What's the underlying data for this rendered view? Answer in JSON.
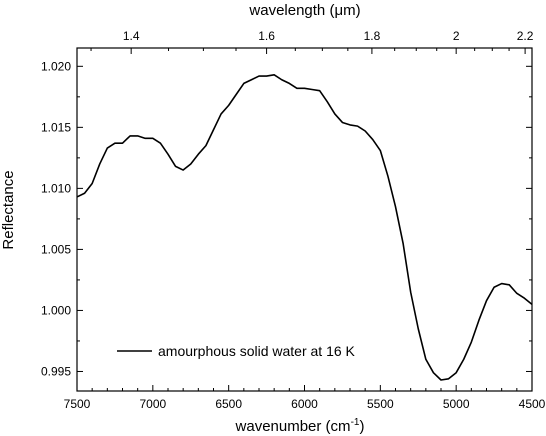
{
  "chart_data": {
    "type": "line",
    "xlabel": "wavenumber (cm",
    "xlabel_sup": "-1",
    "xlabel_close": ")",
    "x2label": "wavelength (",
    "x2label_mu": "μm",
    "x2label_close": ")",
    "ylabel": "Reflectance",
    "xlim": [
      7500,
      4500
    ],
    "ylim": [
      0.9934,
      1.0215
    ],
    "x_ticks": [
      7500,
      7000,
      6500,
      6000,
      5500,
      5000,
      4500
    ],
    "x_tick_labels": [
      "7500",
      "7000",
      "6500",
      "6000",
      "5500",
      "5000",
      "4500"
    ],
    "y_ticks": [
      0.995,
      1.0,
      1.005,
      1.01,
      1.015,
      1.02
    ],
    "y_tick_labels": [
      "0.995",
      "1.000",
      "1.005",
      "1.010",
      "1.015",
      "1.020"
    ],
    "x2_ticks_um": [
      1.4,
      1.6,
      1.8,
      2.0,
      2.2
    ],
    "x2_tick_labels": [
      "1.4",
      "1.6",
      "1.8",
      "2",
      "2.2"
    ],
    "grid": false,
    "legend_position": "bottom-left",
    "series": [
      {
        "name": "amourphous solid water at 16 K",
        "color": "#000000",
        "x": [
          7500,
          7450,
          7400,
          7350,
          7300,
          7250,
          7200,
          7150,
          7100,
          7050,
          7000,
          6950,
          6900,
          6850,
          6800,
          6750,
          6700,
          6650,
          6600,
          6550,
          6500,
          6450,
          6400,
          6350,
          6300,
          6250,
          6200,
          6150,
          6100,
          6050,
          6000,
          5950,
          5900,
          5850,
          5800,
          5750,
          5700,
          5650,
          5600,
          5550,
          5500,
          5450,
          5400,
          5350,
          5300,
          5250,
          5200,
          5150,
          5100,
          5050,
          5000,
          4950,
          4900,
          4850,
          4800,
          4750,
          4700,
          4650,
          4600,
          4550,
          4500
        ],
        "values": [
          1.0093,
          1.0096,
          1.0104,
          1.012,
          1.0133,
          1.0137,
          1.0137,
          1.0143,
          1.0143,
          1.0141,
          1.0141,
          1.0137,
          1.0128,
          1.0118,
          1.0115,
          1.012,
          1.0128,
          1.0135,
          1.0148,
          1.0161,
          1.0168,
          1.0177,
          1.0186,
          1.0189,
          1.0192,
          1.0192,
          1.0193,
          1.0189,
          1.0186,
          1.0182,
          1.0182,
          1.0181,
          1.018,
          1.0171,
          1.0161,
          1.0154,
          1.0152,
          1.0151,
          1.0147,
          1.014,
          1.0131,
          1.011,
          1.0085,
          1.0055,
          1.0015,
          0.9985,
          0.996,
          0.9949,
          0.9943,
          0.9944,
          0.9949,
          0.996,
          0.9974,
          0.9992,
          1.0008,
          1.0019,
          1.0022,
          1.0021,
          1.0014,
          1.001,
          1.0005
        ]
      }
    ]
  }
}
